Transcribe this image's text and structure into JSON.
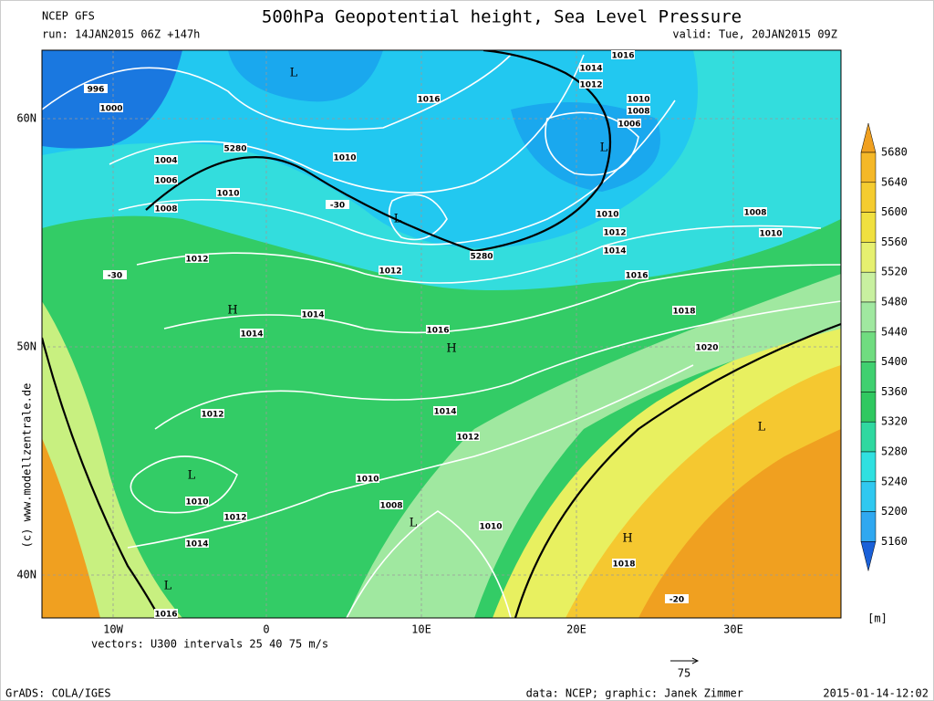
{
  "header": {
    "source": "NCEP GFS",
    "run": "run: 14JAN2015 06Z +147h",
    "title": "500hPa Geopotential height, Sea Level Pressure",
    "valid": "valid: Tue, 20JAN2015 09Z"
  },
  "axes": {
    "lat_labels": [
      "60N",
      "50N",
      "40N"
    ],
    "lon_labels": [
      "10W",
      "0",
      "10E",
      "20E",
      "30E"
    ]
  },
  "map": {
    "centers": [
      "L",
      "L",
      "L",
      "H",
      "H",
      "L",
      "L",
      "H",
      "L",
      "L"
    ],
    "contour_labels": [
      "996",
      "1000",
      "1004",
      "1006",
      "1008",
      "1010",
      "5280",
      "1012",
      "1010",
      "1016",
      "1016",
      "1014",
      "1012",
      "1010",
      "1008",
      "1006",
      "1010",
      "1012",
      "1014",
      "1016",
      "1018",
      "1020",
      "1008",
      "1010",
      "5280",
      "1012",
      "1014",
      "1014",
      "1016",
      "1012",
      "1014",
      "1012",
      "1010",
      "1008",
      "1010",
      "1010",
      "1012",
      "1014",
      "1016",
      "1018",
      "-30",
      "-30",
      "-20"
    ]
  },
  "copyright": "(c) www.modellzentrale.de",
  "vectors_note": "vectors: U300 intervals 25 40 75 m/s",
  "vector_scale": "75",
  "legend": {
    "levels": [
      "5680",
      "5640",
      "5600",
      "5560",
      "5520",
      "5480",
      "5440",
      "5400",
      "5360",
      "5320",
      "5280",
      "5240",
      "5200",
      "5160"
    ],
    "unit": "[m]"
  },
  "footer": {
    "software": "GrADS: COLA/IGES",
    "credits": "data: NCEP; graphic: Janek Zimmer",
    "timestamp": "2015-01-14-12:02"
  }
}
